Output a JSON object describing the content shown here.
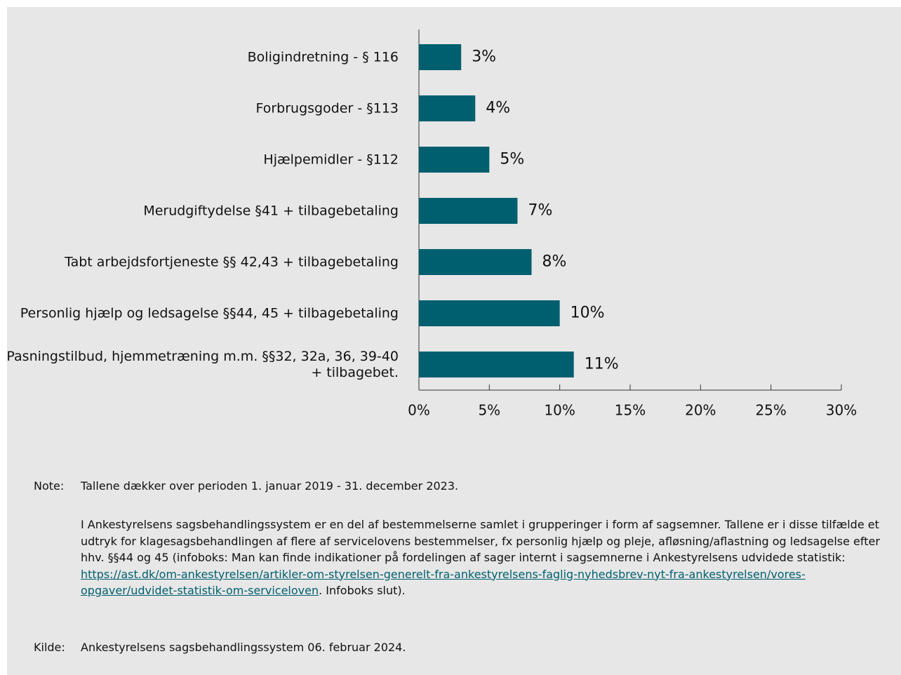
{
  "chart_data": {
    "type": "barh",
    "categories": [
      "Boligindretning - § 116",
      "Forbrugsgoder - §113",
      "Hjælpemidler - §112",
      "Merudgiftydelse §41 + tilbagebetaling",
      "Tabt arbejdsfortjeneste §§ 42,43 + tilbagebetaling",
      "Personlig hjælp og ledsagelse §§44, 45 + tilbagebetaling",
      "Pasningstilbud, hjemmetræning m.m. §§32, 32a, 36, 39-40 + tilbagebet."
    ],
    "values": [
      3,
      4,
      5,
      7,
      8,
      10,
      11
    ],
    "value_labels": [
      "3%",
      "4%",
      "5%",
      "7%",
      "8%",
      "10%",
      "11%"
    ],
    "color": "#005f6e",
    "xlim": [
      0,
      30
    ],
    "xticks": [
      {
        "value": 0,
        "label": "0%"
      },
      {
        "value": 5,
        "label": "5%"
      },
      {
        "value": 10,
        "label": "10%"
      },
      {
        "value": 15,
        "label": "15%"
      },
      {
        "value": 20,
        "label": "20%"
      },
      {
        "value": 25,
        "label": "25%"
      },
      {
        "value": 30,
        "label": "30%"
      }
    ]
  },
  "notes": {
    "note_label": "Note:",
    "note_text": "Tallene dækker over perioden 1. januar 2019 - 31. december 2023.",
    "paragraph": "I Ankestyrelsens sagsbehandlingssystem er en del af bestemmelserne samlet i grupperinger i form af sagsemner. Tallene er i disse tilfælde et udtryk for klagesagsbehandlingen af flere af servicelovens bestemmelser, fx personlig hjælp og pleje, afløsning/aflastning og ledsagelse efter hhv. §§44 og 45 (infoboks: Man kan finde indikationer på fordelingen af sager internt i sagsemnerne i Ankestyrelsens udvidede statistik:",
    "link": "https://ast.dk/om-ankestyrelsen/artikler-om-styrelsen-generelt-fra-ankestyrelsens-faglig-nyhedsbrev-nyt-fra-ankestyrelsen/vores-opgaver/udvidet-statistik-om-serviceloven",
    "paragraph_end": ". Infoboks slut).",
    "source_label": "Kilde:",
    "source_text": "Ankestyrelsens sagsbehandlingssystem 06. februar 2024."
  }
}
